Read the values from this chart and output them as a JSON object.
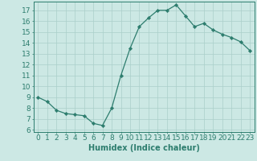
{
  "x": [
    0,
    1,
    2,
    3,
    4,
    5,
    6,
    7,
    8,
    9,
    10,
    11,
    12,
    13,
    14,
    15,
    16,
    17,
    18,
    19,
    20,
    21,
    22,
    23
  ],
  "y": [
    9.0,
    8.6,
    7.8,
    7.5,
    7.4,
    7.3,
    6.6,
    6.4,
    8.0,
    11.0,
    13.5,
    15.5,
    16.3,
    17.0,
    17.0,
    17.5,
    16.5,
    15.5,
    15.8,
    15.2,
    14.8,
    14.5,
    14.1,
    13.3
  ],
  "xlabel": "Humidex (Indice chaleur)",
  "xlim": [
    -0.5,
    23.5
  ],
  "ylim": [
    5.8,
    17.8
  ],
  "yticks": [
    6,
    7,
    8,
    9,
    10,
    11,
    12,
    13,
    14,
    15,
    16,
    17
  ],
  "xticks": [
    0,
    1,
    2,
    3,
    4,
    5,
    6,
    7,
    8,
    9,
    10,
    11,
    12,
    13,
    14,
    15,
    16,
    17,
    18,
    19,
    20,
    21,
    22,
    23
  ],
  "line_color": "#2d7d6e",
  "marker": "D",
  "marker_size": 2.2,
  "bg_color": "#cce8e4",
  "grid_color": "#aacfca",
  "tick_color": "#2d7d6e",
  "label_color": "#2d7d6e",
  "xlabel_fontsize": 7,
  "tick_fontsize": 6.5
}
